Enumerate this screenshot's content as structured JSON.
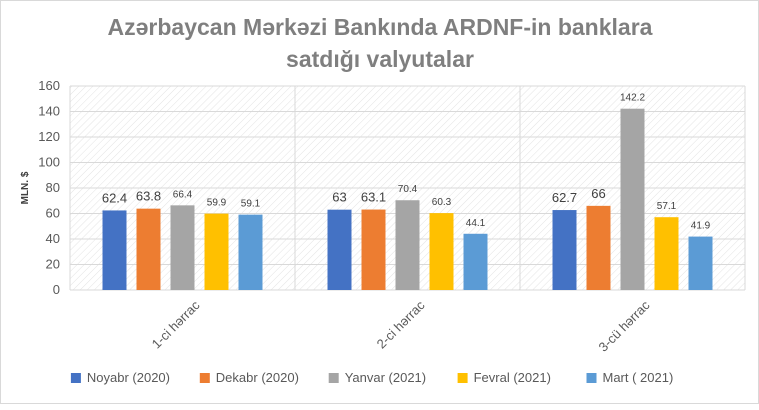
{
  "chart_data": {
    "type": "bar",
    "title": "Azərbaycan Mərkəzi Bankında ARDNF-in banklara satdığı valyutalar",
    "title_lines": [
      "Azərbaycan Mərkəzi Bankında ARDNF-in banklara",
      "satdığı valyutalar"
    ],
    "ylabel": "MLN. $",
    "xlabel": "",
    "ylim": [
      0,
      160
    ],
    "yticks": [
      0,
      20,
      40,
      60,
      80,
      100,
      120,
      140,
      160
    ],
    "grid": true,
    "legend_position": "bottom",
    "categories": [
      "1-ci hərrac",
      "2-ci hərrac",
      "3-cü hərrac"
    ],
    "series": [
      {
        "name": "Noyabr (2020)",
        "color": "#4472c4",
        "values": [
          62.4,
          63,
          62.7
        ],
        "labels": [
          "62.4",
          "63",
          "62.7"
        ]
      },
      {
        "name": "Dekabr (2020)",
        "color": "#ed7d31",
        "values": [
          63.8,
          63.1,
          66
        ],
        "labels": [
          "63.8",
          "63.1",
          "66"
        ]
      },
      {
        "name": "Yanvar (2021)",
        "color": "#a5a5a5",
        "values": [
          66.4,
          70.4,
          142.2
        ],
        "labels": [
          "66.4",
          "70.4",
          "142.2"
        ]
      },
      {
        "name": "Fevral (2021)",
        "color": "#ffc000",
        "values": [
          59.9,
          60.3,
          57.1
        ],
        "labels": [
          "59.9",
          "60.3",
          "57.1"
        ]
      },
      {
        "name": "Mart ( 2021)",
        "color": "#5b9bd5",
        "values": [
          59.1,
          44.1,
          41.9
        ],
        "labels": [
          "59.1",
          "44.1",
          "41.9"
        ]
      }
    ]
  }
}
